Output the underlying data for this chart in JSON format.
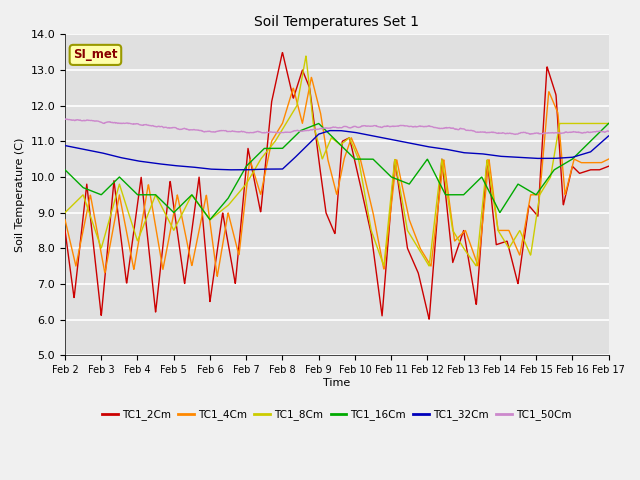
{
  "title": "Soil Temperatures Set 1",
  "xlabel": "Time",
  "ylabel": "Soil Temperature (C)",
  "ylim": [
    5.0,
    14.0
  ],
  "yticks": [
    5.0,
    6.0,
    7.0,
    8.0,
    9.0,
    10.0,
    11.0,
    12.0,
    13.0,
    14.0
  ],
  "xtick_labels": [
    "Feb 2",
    "Feb 3",
    "Feb 4",
    "Feb 5",
    "Feb 6",
    "Feb 7",
    "Feb 8",
    "Feb 9",
    "Feb 10",
    "Feb 11",
    "Feb 12",
    "Feb 13",
    "Feb 14",
    "Feb 15",
    "Feb 16",
    "Feb 17"
  ],
  "annotation_text": "SI_met",
  "annotation_bg": "#ffffaa",
  "annotation_border": "#999900",
  "annotation_text_color": "#880000",
  "series_colors": [
    "#cc0000",
    "#ff8800",
    "#cccc00",
    "#00aa00",
    "#0000bb",
    "#cc88cc"
  ],
  "series_labels": [
    "TC1_2Cm",
    "TC1_4Cm",
    "TC1_8Cm",
    "TC1_16Cm",
    "TC1_32Cm",
    "TC1_50Cm"
  ],
  "bg_color": "#e0e0e0",
  "grid_color": "#ffffff",
  "linewidth": 1.0,
  "figsize": [
    6.4,
    4.8
  ],
  "dpi": 100
}
